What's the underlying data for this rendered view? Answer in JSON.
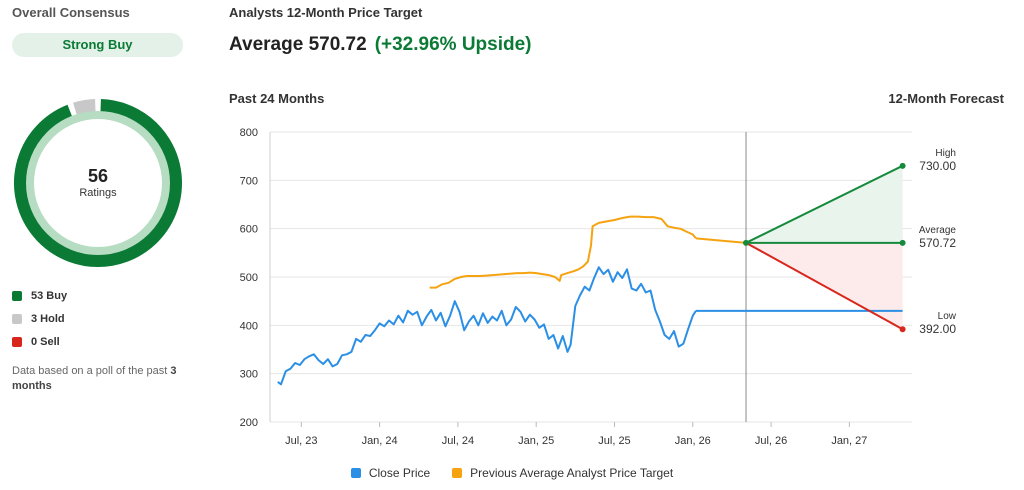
{
  "consensus": {
    "title": "Overall Consensus",
    "rating": "Strong Buy",
    "total": "56",
    "total_label": "Ratings",
    "breakdown": [
      {
        "label": "53 Buy",
        "count": 53,
        "color": "#0a7a35"
      },
      {
        "label": "3 Hold",
        "count": 3,
        "color": "#c8c8c8"
      },
      {
        "label": "0 Sell",
        "count": 0,
        "color": "#d9261c"
      }
    ],
    "note_prefix": "Data based on a poll of the past ",
    "note_bold": "3 months"
  },
  "price_target": {
    "title": "Analysts 12-Month Price Target",
    "average_label": "Average 570.72",
    "upside_label": "(+32.96% Upside)"
  },
  "chart_sections": {
    "past": "Past 24 Months",
    "forecast": "12-Month Forecast"
  },
  "chart_data": {
    "type": "line",
    "ylim": [
      200,
      800
    ],
    "yticks": [
      200,
      300,
      400,
      500,
      600,
      700,
      800
    ],
    "xticks": [
      {
        "label": "Jul, 23",
        "x": 2023.5
      },
      {
        "label": "Jan, 24",
        "x": 2024.0
      },
      {
        "label": "Jul, 24",
        "x": 2024.5
      },
      {
        "label": "Jan, 25",
        "x": 2025.0
      },
      {
        "label": "Jul, 25",
        "x": 2025.5
      },
      {
        "label": "Jan, 26",
        "x": 2026.0
      },
      {
        "label": "Jul, 26",
        "x": 2026.5
      },
      {
        "label": "Jan, 27",
        "x": 2027.0
      }
    ],
    "xlim": [
      2023.3,
      2027.4
    ],
    "forecast_start": 2026.34,
    "forecast_end": 2027.34,
    "series": [
      {
        "name": "Close Price",
        "color": "#2b8fe6",
        "points": [
          [
            2023.35,
            283
          ],
          [
            2023.37,
            278
          ],
          [
            2023.4,
            305
          ],
          [
            2023.43,
            310
          ],
          [
            2023.46,
            322
          ],
          [
            2023.49,
            318
          ],
          [
            2023.52,
            330
          ],
          [
            2023.55,
            336
          ],
          [
            2023.58,
            340
          ],
          [
            2023.61,
            328
          ],
          [
            2023.64,
            320
          ],
          [
            2023.67,
            330
          ],
          [
            2023.7,
            315
          ],
          [
            2023.73,
            320
          ],
          [
            2023.76,
            338
          ],
          [
            2023.79,
            340
          ],
          [
            2023.82,
            345
          ],
          [
            2023.85,
            372
          ],
          [
            2023.88,
            366
          ],
          [
            2023.91,
            380
          ],
          [
            2023.94,
            378
          ],
          [
            2023.97,
            390
          ],
          [
            2024.0,
            404
          ],
          [
            2024.03,
            398
          ],
          [
            2024.06,
            410
          ],
          [
            2024.09,
            402
          ],
          [
            2024.12,
            420
          ],
          [
            2024.15,
            406
          ],
          [
            2024.18,
            430
          ],
          [
            2024.21,
            422
          ],
          [
            2024.24,
            428
          ],
          [
            2024.27,
            400
          ],
          [
            2024.3,
            418
          ],
          [
            2024.33,
            432
          ],
          [
            2024.36,
            410
          ],
          [
            2024.39,
            426
          ],
          [
            2024.42,
            398
          ],
          [
            2024.45,
            420
          ],
          [
            2024.48,
            450
          ],
          [
            2024.51,
            428
          ],
          [
            2024.54,
            390
          ],
          [
            2024.57,
            408
          ],
          [
            2024.6,
            420
          ],
          [
            2024.63,
            400
          ],
          [
            2024.66,
            425
          ],
          [
            2024.69,
            405
          ],
          [
            2024.72,
            418
          ],
          [
            2024.75,
            410
          ],
          [
            2024.78,
            430
          ],
          [
            2024.81,
            400
          ],
          [
            2024.84,
            412
          ],
          [
            2024.87,
            438
          ],
          [
            2024.9,
            428
          ],
          [
            2024.93,
            408
          ],
          [
            2024.96,
            422
          ],
          [
            2024.99,
            412
          ],
          [
            2025.02,
            395
          ],
          [
            2025.05,
            402
          ],
          [
            2025.08,
            372
          ],
          [
            2025.11,
            380
          ],
          [
            2025.14,
            352
          ],
          [
            2025.17,
            378
          ],
          [
            2025.2,
            345
          ],
          [
            2025.22,
            360
          ],
          [
            2025.25,
            440
          ],
          [
            2025.28,
            462
          ],
          [
            2025.31,
            480
          ],
          [
            2025.34,
            472
          ],
          [
            2025.37,
            498
          ],
          [
            2025.4,
            520
          ],
          [
            2025.43,
            506
          ],
          [
            2025.46,
            515
          ],
          [
            2025.49,
            490
          ],
          [
            2025.52,
            510
          ],
          [
            2025.55,
            498
          ],
          [
            2025.58,
            516
          ],
          [
            2025.61,
            476
          ],
          [
            2025.64,
            472
          ],
          [
            2025.67,
            486
          ],
          [
            2025.7,
            468
          ],
          [
            2025.73,
            472
          ],
          [
            2025.76,
            432
          ],
          [
            2025.79,
            408
          ],
          [
            2025.82,
            380
          ],
          [
            2025.85,
            372
          ],
          [
            2025.88,
            388
          ],
          [
            2025.91,
            356
          ],
          [
            2025.94,
            362
          ],
          [
            2025.97,
            392
          ],
          [
            2026.0,
            420
          ],
          [
            2026.02,
            430
          ]
        ]
      },
      {
        "name": "Previous Average Analyst Price Target",
        "color": "#f5a310",
        "points": [
          [
            2024.32,
            478
          ],
          [
            2024.36,
            478
          ],
          [
            2024.4,
            485
          ],
          [
            2024.44,
            488
          ],
          [
            2024.48,
            496
          ],
          [
            2024.52,
            500
          ],
          [
            2024.56,
            502
          ],
          [
            2024.6,
            502
          ],
          [
            2024.64,
            502
          ],
          [
            2024.68,
            503
          ],
          [
            2024.72,
            504
          ],
          [
            2024.76,
            505
          ],
          [
            2024.8,
            506
          ],
          [
            2024.84,
            507
          ],
          [
            2024.88,
            508
          ],
          [
            2024.92,
            508
          ],
          [
            2024.96,
            509
          ],
          [
            2025.0,
            508
          ],
          [
            2025.04,
            506
          ],
          [
            2025.08,
            504
          ],
          [
            2025.12,
            500
          ],
          [
            2025.15,
            492
          ],
          [
            2025.16,
            504
          ],
          [
            2025.2,
            508
          ],
          [
            2025.24,
            512
          ],
          [
            2025.27,
            516
          ],
          [
            2025.3,
            522
          ],
          [
            2025.33,
            532
          ],
          [
            2025.35,
            565
          ],
          [
            2025.36,
            605
          ],
          [
            2025.4,
            612
          ],
          [
            2025.45,
            615
          ],
          [
            2025.5,
            618
          ],
          [
            2025.55,
            622
          ],
          [
            2025.6,
            625
          ],
          [
            2025.65,
            625
          ],
          [
            2025.7,
            624
          ],
          [
            2025.75,
            624
          ],
          [
            2025.8,
            620
          ],
          [
            2025.84,
            605
          ],
          [
            2025.88,
            602
          ],
          [
            2025.92,
            600
          ],
          [
            2025.96,
            594
          ],
          [
            2026.0,
            588
          ],
          [
            2026.02,
            580
          ]
        ]
      }
    ],
    "forecast": {
      "current": 570.72,
      "close_forecast": 430,
      "high": 730.0,
      "average": 570.72,
      "low": 392.0,
      "labels": [
        {
          "name": "High",
          "value": "730.00"
        },
        {
          "name": "Average",
          "value": "570.72"
        },
        {
          "name": "Low",
          "value": "392.00"
        }
      ],
      "colors": {
        "high": "#168a3c",
        "average": "#168a3c",
        "low": "#d9261c",
        "close": "#2b8fe6"
      }
    },
    "legend": [
      "Close Price",
      "Previous Average Analyst Price Target"
    ]
  }
}
